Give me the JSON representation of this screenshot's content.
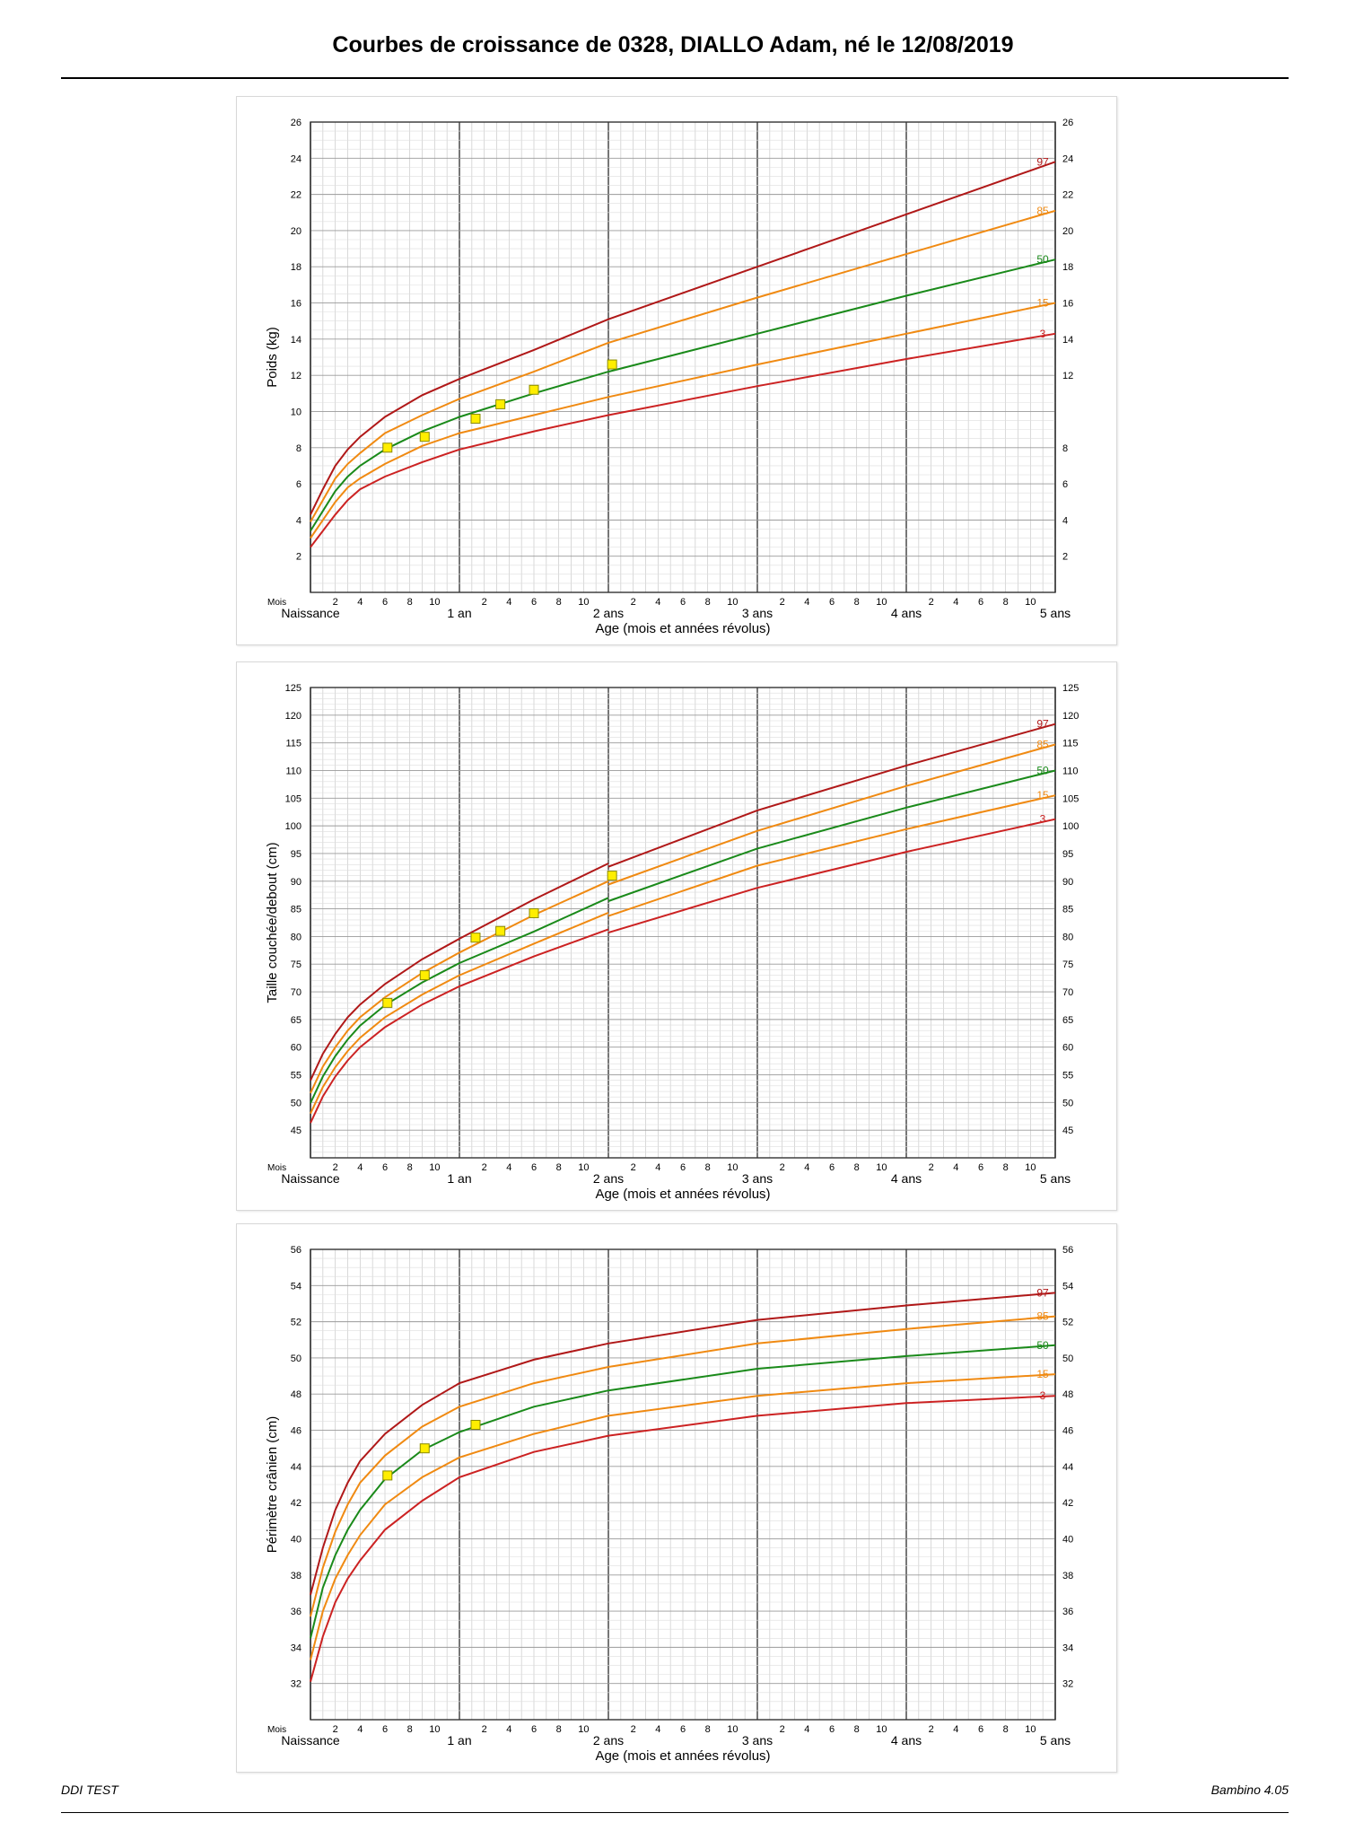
{
  "header": {
    "title": "Courbes de croissance de 0328, DIALLO Adam, né le 12/08/2019"
  },
  "footer": {
    "left": "DDI TEST",
    "right": "Bambino 4.05"
  },
  "x_axis": {
    "title": "Age (mois et années révolus)",
    "corner_label": "Mois",
    "year_labels": [
      "Naissance",
      "1 an",
      "2 ans",
      "3 ans",
      "4 ans",
      "5 ans"
    ],
    "month_ticks": [
      2,
      4,
      6,
      8,
      10
    ]
  },
  "colors": {
    "p97": "#b01818",
    "p85": "#f08a12",
    "p50": "#1a8a1a",
    "p15": "#f08a12",
    "p3": "#cc2222",
    "marker": "#ffee00",
    "grid_minor": "#c9c9c9",
    "grid_major": "#555555"
  },
  "chart_data": [
    {
      "type": "line",
      "ylabel": "Poids (kg)",
      "xlim": [
        0,
        60
      ],
      "ylim": [
        0,
        26
      ],
      "yticks_left": [
        2,
        4,
        6,
        8,
        10,
        12,
        14,
        16,
        18,
        20,
        22,
        24,
        26
      ],
      "yticks_right": [
        2,
        4,
        6,
        8,
        12,
        14,
        16,
        18,
        20,
        22,
        24,
        26
      ],
      "series": [
        {
          "name": "97",
          "x": [
            0,
            1,
            2,
            3,
            4,
            6,
            9,
            12,
            18,
            24,
            36,
            48,
            60
          ],
          "values": [
            4.3,
            5.7,
            7.0,
            7.9,
            8.6,
            9.7,
            10.9,
            11.8,
            13.4,
            15.1,
            18.0,
            20.9,
            23.8
          ]
        },
        {
          "name": "85",
          "x": [
            0,
            1,
            2,
            3,
            4,
            6,
            9,
            12,
            18,
            24,
            36,
            48,
            60
          ],
          "values": [
            3.9,
            5.1,
            6.3,
            7.1,
            7.7,
            8.8,
            9.8,
            10.7,
            12.2,
            13.8,
            16.3,
            18.7,
            21.1
          ]
        },
        {
          "name": "50",
          "x": [
            0,
            1,
            2,
            3,
            4,
            6,
            9,
            12,
            18,
            24,
            36,
            48,
            60
          ],
          "values": [
            3.4,
            4.5,
            5.6,
            6.4,
            7.0,
            7.9,
            8.9,
            9.7,
            11.0,
            12.2,
            14.3,
            16.4,
            18.4
          ]
        },
        {
          "name": "15",
          "x": [
            0,
            1,
            2,
            3,
            4,
            6,
            9,
            12,
            18,
            24,
            36,
            48,
            60
          ],
          "values": [
            3.0,
            4.0,
            5.0,
            5.8,
            6.3,
            7.1,
            8.1,
            8.8,
            9.8,
            10.8,
            12.6,
            14.3,
            16.0
          ]
        },
        {
          "name": "3",
          "x": [
            0,
            1,
            2,
            3,
            4,
            6,
            9,
            12,
            18,
            24,
            36,
            48,
            60
          ],
          "values": [
            2.5,
            3.4,
            4.3,
            5.1,
            5.7,
            6.4,
            7.2,
            7.9,
            8.9,
            9.8,
            11.4,
            12.9,
            14.3
          ]
        }
      ],
      "points": {
        "x": [
          6.2,
          9.2,
          13.3,
          15.3,
          18.0,
          24.3
        ],
        "y": [
          8.0,
          8.6,
          9.6,
          10.4,
          11.2,
          12.6
        ]
      }
    },
    {
      "type": "line",
      "ylabel": "Taille couchée/debout (cm)",
      "xlim": [
        0,
        60
      ],
      "ylim": [
        40,
        125
      ],
      "yticks_left": [
        45,
        50,
        55,
        60,
        65,
        70,
        75,
        80,
        85,
        90,
        95,
        100,
        105,
        110,
        115,
        120,
        125
      ],
      "yticks_right": [
        45,
        50,
        55,
        60,
        65,
        70,
        75,
        80,
        85,
        90,
        95,
        100,
        105,
        110,
        115,
        120,
        125
      ],
      "series": [
        {
          "name": "97",
          "x": [
            0,
            1,
            2,
            3,
            4,
            6,
            9,
            12,
            18,
            24,
            24,
            36,
            48,
            60
          ],
          "values": [
            54.0,
            58.8,
            62.4,
            65.4,
            67.7,
            71.4,
            75.9,
            79.6,
            86.7,
            93.2,
            92.6,
            102.8,
            110.9,
            118.4
          ]
        },
        {
          "name": "85",
          "x": [
            0,
            1,
            2,
            3,
            4,
            6,
            9,
            12,
            18,
            24,
            24,
            36,
            48,
            60
          ],
          "values": [
            51.7,
            56.5,
            60.0,
            63.0,
            65.4,
            69.0,
            73.4,
            77.1,
            83.9,
            90.0,
            89.4,
            99.1,
            107.2,
            114.7
          ]
        },
        {
          "name": "50",
          "x": [
            0,
            1,
            2,
            3,
            4,
            6,
            9,
            12,
            18,
            24,
            24,
            36,
            48,
            60
          ],
          "values": [
            49.9,
            54.7,
            58.4,
            61.4,
            63.9,
            67.6,
            71.7,
            75.2,
            80.9,
            87.0,
            86.4,
            95.9,
            103.3,
            110.0
          ]
        },
        {
          "name": "15",
          "x": [
            0,
            1,
            2,
            3,
            4,
            6,
            9,
            12,
            18,
            24,
            24,
            36,
            48,
            60
          ],
          "values": [
            48.0,
            52.8,
            56.4,
            59.3,
            61.7,
            65.4,
            69.5,
            73.0,
            78.7,
            84.3,
            83.7,
            92.8,
            99.4,
            105.5
          ]
        },
        {
          "name": "3",
          "x": [
            0,
            1,
            2,
            3,
            4,
            6,
            9,
            12,
            18,
            24,
            24,
            36,
            48,
            60
          ],
          "values": [
            46.3,
            51.1,
            54.7,
            57.6,
            60.0,
            63.6,
            67.7,
            71.0,
            76.4,
            81.3,
            80.7,
            88.8,
            95.3,
            101.2
          ]
        }
      ],
      "points": {
        "x": [
          6.2,
          9.2,
          13.3,
          15.3,
          18.0,
          24.3
        ],
        "y": [
          68.0,
          73.0,
          79.8,
          81.0,
          84.2,
          91.0
        ]
      }
    },
    {
      "type": "line",
      "ylabel": "Périmètre crânien (cm)",
      "xlim": [
        0,
        60
      ],
      "ylim": [
        30,
        56
      ],
      "yticks_left": [
        32,
        34,
        36,
        38,
        40,
        42,
        44,
        46,
        48,
        50,
        52,
        54,
        56
      ],
      "yticks_right": [
        32,
        34,
        36,
        38,
        40,
        42,
        44,
        46,
        48,
        50,
        52,
        54,
        56
      ],
      "series": [
        {
          "name": "97",
          "x": [
            0,
            1,
            2,
            3,
            4,
            6,
            9,
            12,
            18,
            24,
            36,
            48,
            60
          ],
          "values": [
            36.9,
            39.5,
            41.6,
            43.1,
            44.3,
            45.8,
            47.4,
            48.6,
            49.9,
            50.8,
            52.1,
            52.9,
            53.6
          ]
        },
        {
          "name": "85",
          "x": [
            0,
            1,
            2,
            3,
            4,
            6,
            9,
            12,
            18,
            24,
            36,
            48,
            60
          ],
          "values": [
            35.7,
            38.4,
            40.4,
            41.9,
            43.1,
            44.6,
            46.2,
            47.3,
            48.6,
            49.5,
            50.8,
            51.6,
            52.3
          ]
        },
        {
          "name": "50",
          "x": [
            0,
            1,
            2,
            3,
            4,
            6,
            9,
            12,
            18,
            24,
            36,
            48,
            60
          ],
          "values": [
            34.5,
            37.3,
            39.1,
            40.5,
            41.6,
            43.3,
            44.9,
            45.9,
            47.3,
            48.2,
            49.4,
            50.1,
            50.7
          ]
        },
        {
          "name": "15",
          "x": [
            0,
            1,
            2,
            3,
            4,
            6,
            9,
            12,
            18,
            24,
            36,
            48,
            60
          ],
          "values": [
            33.3,
            36.0,
            37.8,
            39.1,
            40.2,
            41.9,
            43.4,
            44.5,
            45.8,
            46.8,
            47.9,
            48.6,
            49.1
          ]
        },
        {
          "name": "3",
          "x": [
            0,
            1,
            2,
            3,
            4,
            6,
            9,
            12,
            18,
            24,
            36,
            48,
            60
          ],
          "values": [
            32.1,
            34.6,
            36.5,
            37.8,
            38.8,
            40.5,
            42.1,
            43.4,
            44.8,
            45.7,
            46.8,
            47.5,
            47.9
          ]
        }
      ],
      "points": {
        "x": [
          6.2,
          9.2,
          13.3
        ],
        "y": [
          43.5,
          45.0,
          46.3
        ]
      }
    }
  ]
}
